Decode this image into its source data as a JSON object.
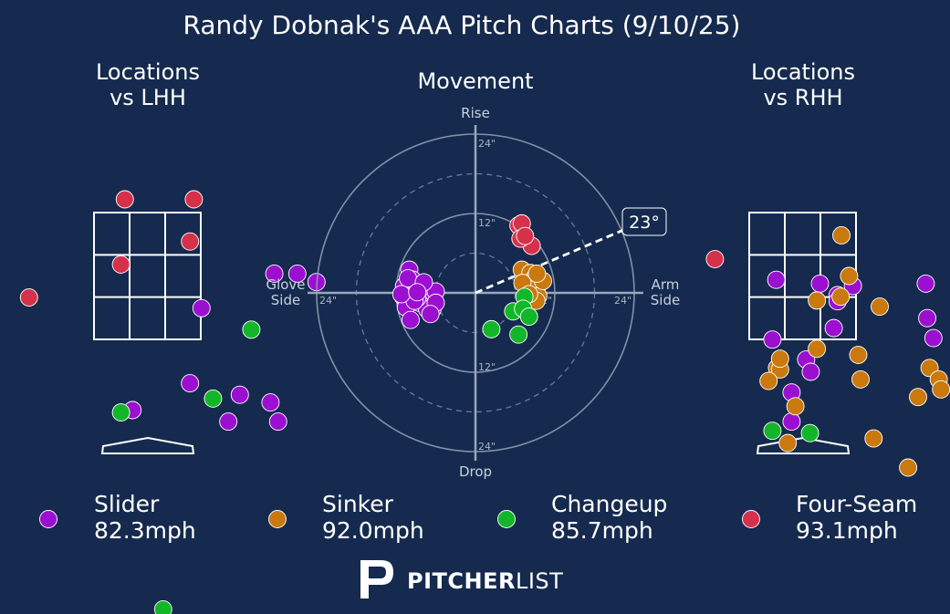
{
  "chart_data": {
    "type": "scatter",
    "title": "Randy Dobnak's AAA Pitch Charts (9/10/25)",
    "panels": {
      "lhh": {
        "title_line1": "Locations",
        "title_line2": "vs LHH"
      },
      "movement": {
        "title": "Movement"
      },
      "rhh": {
        "title_line1": "Locations",
        "title_line2": "vs RHH"
      }
    },
    "movement_axes": {
      "top": "Rise",
      "bottom": "Drop",
      "left_line1": "Glove",
      "left_line2": "Side",
      "right_line1": "Arm",
      "right_line2": "Side",
      "rings": [
        6,
        12,
        18,
        24
      ],
      "ring_labels": {
        "r12": "12\"",
        "r24": "24\""
      },
      "arm_angle_deg": 23,
      "arm_angle_label": "23°"
    },
    "series": [
      {
        "name": "Slider",
        "speed": "82.3mph",
        "color": "#9b10d0",
        "movement": [
          [
            -10,
            3.5
          ],
          [
            -9.5,
            2
          ],
          [
            -10.8,
            1
          ],
          [
            -11,
            -0.5
          ],
          [
            -9.5,
            -1
          ],
          [
            -10.5,
            -2.2
          ],
          [
            -9,
            0
          ],
          [
            -8,
            -0.5
          ],
          [
            -7,
            -1.5
          ],
          [
            -6.5,
            -2.5
          ],
          [
            -8.5,
            -1.5
          ],
          [
            -9.8,
            -4.1
          ],
          [
            -7.3,
            -2.5
          ],
          [
            -6,
            0.2
          ],
          [
            -6,
            -1.5
          ],
          [
            -10.2,
            2.2
          ],
          [
            -7.8,
            1.6
          ],
          [
            -8.8,
            -0.8
          ],
          [
            -6.8,
            -3.2
          ],
          [
            -9.2,
            -1.2
          ],
          [
            -11.2,
            -0.2
          ],
          [
            -8.8,
            0.1
          ]
        ],
        "lhh": [
          [
            1.65,
            2.53
          ],
          [
            1.95,
            2.53
          ],
          [
            2.2,
            2.42
          ],
          [
            0.7,
            2.08
          ],
          [
            0.55,
            1.1
          ],
          [
            1.2,
            0.95
          ],
          [
            1.6,
            0.85
          ],
          [
            -0.2,
            0.75
          ],
          [
            1.05,
            0.6
          ],
          [
            1.7,
            0.6
          ]
        ],
        "rhh": [
          [
            -0.35,
            2.45
          ],
          [
            0.22,
            2.4
          ],
          [
            0.45,
            2.25
          ],
          [
            0.65,
            2.37
          ],
          [
            0.45,
            2.17
          ],
          [
            -0.4,
            1.67
          ],
          [
            0.4,
            1.82
          ],
          [
            1.6,
            2.4
          ],
          [
            1.62,
            1.95
          ],
          [
            1.7,
            1.69
          ],
          [
            2.5,
            1.95
          ],
          [
            0.04,
            1.41
          ],
          [
            0.1,
            1.25
          ],
          [
            -0.15,
            0.98
          ],
          [
            -0.15,
            0.6
          ]
        ]
      },
      {
        "name": "Sinker",
        "speed": "92.0mph",
        "color": "#c9790d",
        "movement": [
          [
            7,
            3.5
          ],
          [
            8.3,
            3
          ],
          [
            9,
            2.3
          ],
          [
            9.5,
            1.2
          ],
          [
            8.5,
            1.7
          ],
          [
            7.8,
            0.2
          ],
          [
            8.8,
            0.5
          ],
          [
            9.5,
            -0.5
          ],
          [
            8.3,
            -0.8
          ],
          [
            9.2,
            -1.2
          ],
          [
            10.2,
            1.8
          ],
          [
            7.1,
            1.5
          ],
          [
            9.3,
            2.9
          ],
          [
            8.1,
            -0.2
          ]
        ],
        "lhh": [],
        "rhh": [
          [
            0.5,
            3.03
          ],
          [
            0.6,
            2.5
          ],
          [
            0.18,
            2.18
          ],
          [
            0.49,
            2.23
          ],
          [
            1.0,
            2.1
          ],
          [
            2.05,
            2.15
          ],
          [
            2.2,
            1.7
          ],
          [
            0.72,
            1.47
          ],
          [
            1.65,
            1.3
          ],
          [
            1.77,
            1.15
          ],
          [
            -0.34,
            1.3
          ],
          [
            -0.3,
            1.28
          ],
          [
            2.35,
            1.7
          ],
          [
            3.1,
            3.23
          ],
          [
            3.6,
            3.05
          ],
          [
            1.5,
            0.92
          ],
          [
            1.8,
            1.02
          ],
          [
            -0.3,
            1.42
          ],
          [
            0.75,
            1.15
          ],
          [
            0.18,
            1.55
          ],
          [
            -0.1,
            0.8
          ],
          [
            0.92,
            0.38
          ],
          [
            1.37,
            0.0
          ],
          [
            -0.45,
            1.13
          ],
          [
            2.55,
            1.68
          ],
          [
            -0.2,
            0.32
          ]
        ]
      },
      {
        "name": "Changeup",
        "speed": "85.7mph",
        "color": "#13b628",
        "movement": [
          [
            7.4,
            -0.6
          ],
          [
            5.7,
            -2.8
          ],
          [
            7.2,
            -2.4
          ],
          [
            8.1,
            -3.6
          ],
          [
            2.4,
            -5.5
          ],
          [
            6.5,
            -6.3
          ]
        ],
        "lhh": [
          [
            1.35,
            1.8
          ],
          [
            0.85,
            0.9
          ],
          [
            -0.35,
            0.72
          ],
          [
            0.2,
            -1.85
          ]
        ],
        "rhh": [
          [
            -0.4,
            0.48
          ],
          [
            0.09,
            0.45
          ]
        ]
      },
      {
        "name": "Four-Seam",
        "speed": "93.1mph",
        "color": "#d6314a",
        "movement": [
          [
            6.5,
            10.2
          ],
          [
            7,
            10.5
          ],
          [
            8.5,
            7.1
          ],
          [
            6.8,
            8.2
          ],
          [
            7.5,
            8.6
          ]
        ],
        "lhh": [
          [
            -0.3,
            3.5
          ],
          [
            0.6,
            3.5
          ],
          [
            0.55,
            2.95
          ],
          [
            -0.35,
            2.65
          ],
          [
            -1.55,
            2.22
          ]
        ],
        "rhh": [
          [
            -1.15,
            2.72
          ]
        ]
      }
    ]
  },
  "branding": {
    "name_bold": "PITCHER",
    "name_light": "LIST"
  }
}
